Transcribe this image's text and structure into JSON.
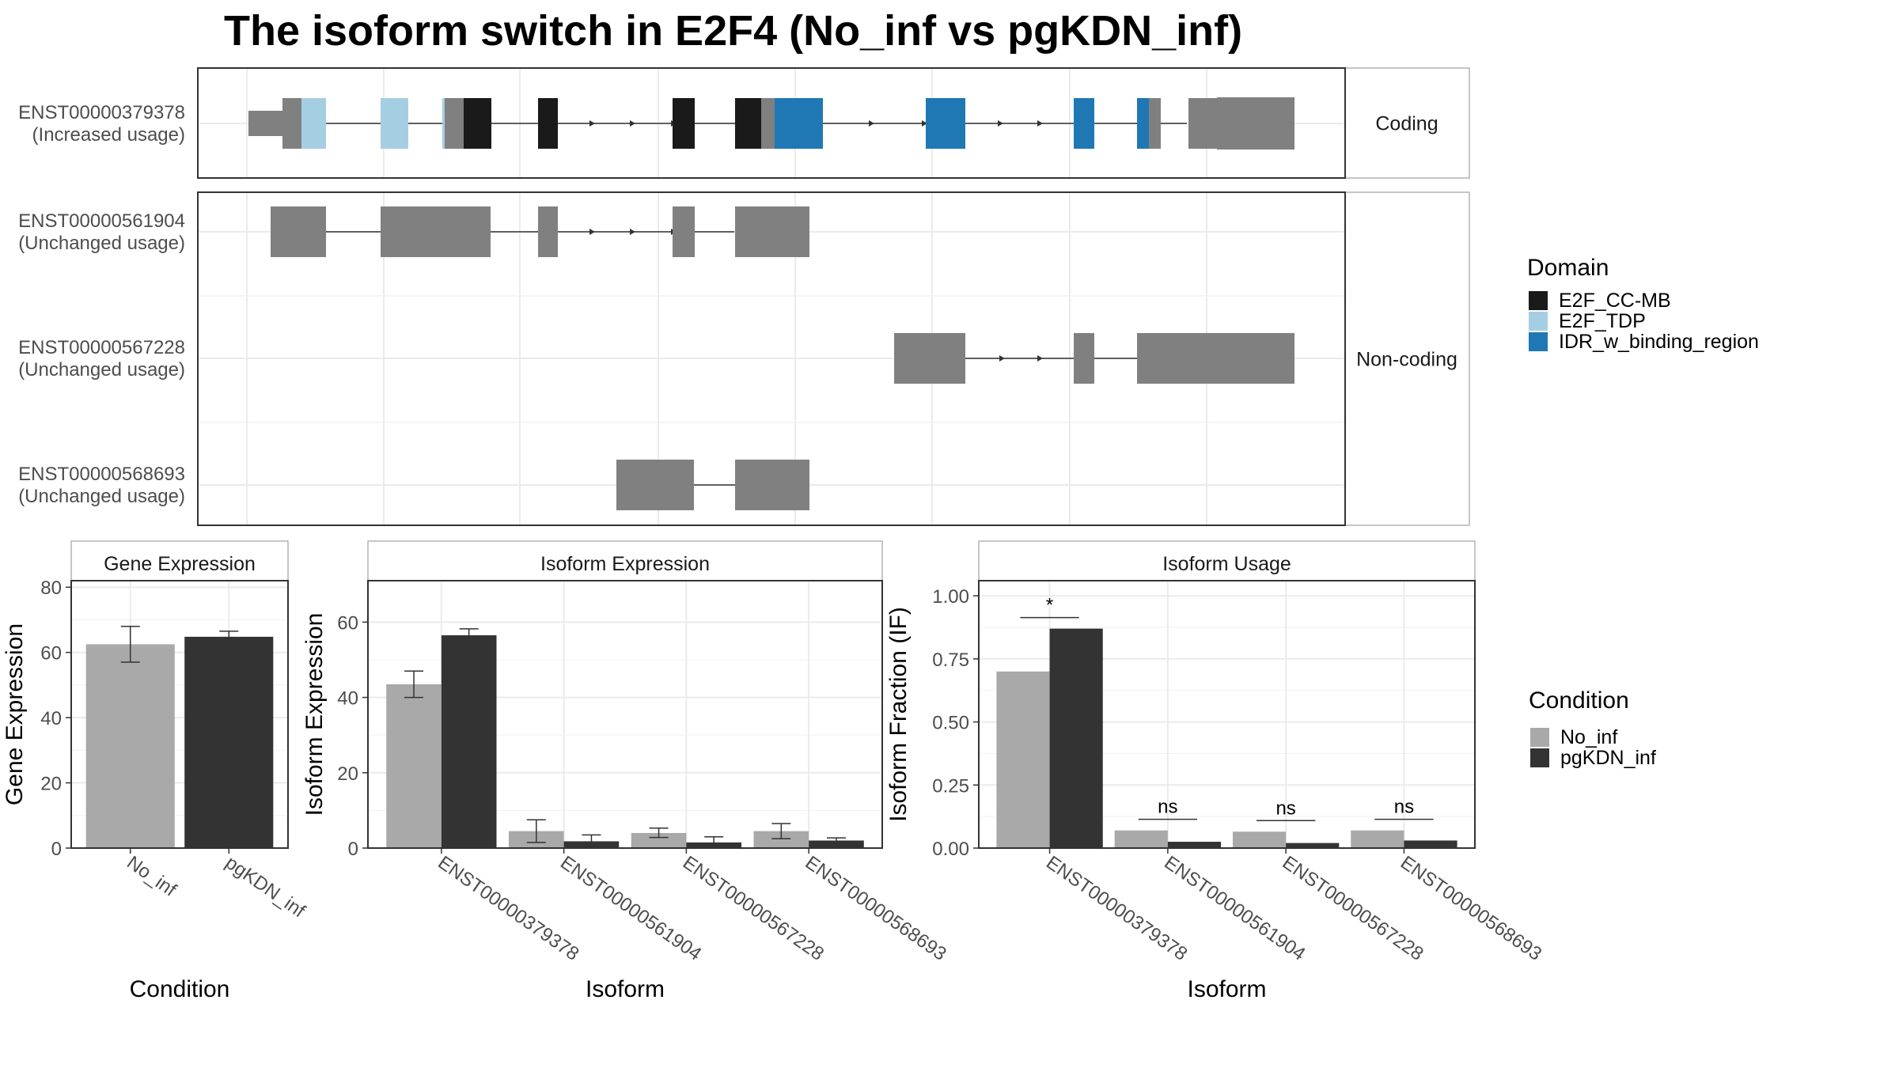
{
  "title": "The isoform switch in E2F4 (No_inf vs pgKDN_inf)",
  "colors": {
    "exon": "#808080",
    "E2F_CC-MB": "#1a1a1a",
    "E2F_TDP": "#a6cee3",
    "IDR_w_binding_region": "#1f78b4",
    "No_inf": "#a9a9a9",
    "pgKDN_inf": "#333333",
    "grid": "#ebebeb",
    "panel_border": "#333333",
    "strip_border": "#b3b3b3"
  },
  "structure": {
    "strips": [
      "Coding",
      "Non-coding"
    ],
    "isoforms": [
      {
        "id": "ENST00000379378",
        "status": "(Increased usage)"
      },
      {
        "id": "ENST00000561904",
        "status": "(Unchanged usage)"
      },
      {
        "id": "ENST00000567228",
        "status": "(Unchanged usage)"
      },
      {
        "id": "ENST00000568693",
        "status": "(Unchanged usage)"
      }
    ],
    "domain_legend": {
      "title": "Domain",
      "items": [
        "E2F_CC-MB",
        "E2F_TDP",
        "IDR_w_binding_region"
      ]
    }
  },
  "condition_legend": {
    "title": "Condition",
    "items": [
      "No_inf",
      "pgKDN_inf"
    ]
  },
  "chart_data": [
    {
      "type": "bar",
      "title": "Gene Expression",
      "xlabel": "Condition",
      "ylabel": "Gene Expression",
      "ylim": [
        0,
        82
      ],
      "yticks": [
        0,
        20,
        40,
        60,
        80
      ],
      "categories": [
        "No_inf",
        "pgKDN_inf"
      ],
      "series": [
        {
          "name": "No_inf",
          "values": [
            62.5,
            null
          ],
          "err_low": [
            57.0,
            null
          ],
          "err_high": [
            68.0,
            null
          ]
        },
        {
          "name": "pgKDN_inf",
          "values": [
            null,
            64.8
          ],
          "err_low": [
            null,
            63.0
          ],
          "err_high": [
            null,
            66.5
          ]
        }
      ],
      "grid": true
    },
    {
      "type": "bar",
      "title": "Isoform Expression",
      "xlabel": "Isoform",
      "ylabel": "Isoform Expression",
      "ylim": [
        0,
        71
      ],
      "yticks": [
        0,
        20,
        40,
        60
      ],
      "categories": [
        "ENST00000379378",
        "ENST00000561904",
        "ENST00000567228",
        "ENST00000568693"
      ],
      "series": [
        {
          "name": "No_inf",
          "values": [
            43.5,
            4.5,
            4.0,
            4.5
          ],
          "err_low": [
            40.0,
            1.5,
            2.8,
            2.5
          ],
          "err_high": [
            47.0,
            7.5,
            5.3,
            6.5
          ]
        },
        {
          "name": "pgKDN_inf",
          "values": [
            56.5,
            1.8,
            1.5,
            2.0
          ],
          "err_low": [
            54.8,
            0.5,
            0.3,
            1.3
          ],
          "err_high": [
            58.2,
            3.5,
            3.0,
            2.7
          ]
        }
      ],
      "grid": true
    },
    {
      "type": "bar",
      "title": "Isoform Usage",
      "xlabel": "Isoform",
      "ylabel": "Isoform Fraction (IF)",
      "ylim": [
        0,
        1.06
      ],
      "yticks": [
        0.0,
        0.25,
        0.5,
        0.75,
        1.0
      ],
      "ytick_labels": [
        "0.00",
        "0.25",
        "0.50",
        "0.75",
        "1.00"
      ],
      "categories": [
        "ENST00000379378",
        "ENST00000561904",
        "ENST00000567228",
        "ENST00000568693"
      ],
      "series": [
        {
          "name": "No_inf",
          "values": [
            0.7,
            0.07,
            0.065,
            0.07
          ]
        },
        {
          "name": "pgKDN_inf",
          "values": [
            0.87,
            0.025,
            0.02,
            0.03
          ]
        }
      ],
      "significance": [
        "*",
        "ns",
        "ns",
        "ns"
      ],
      "grid": true
    }
  ]
}
